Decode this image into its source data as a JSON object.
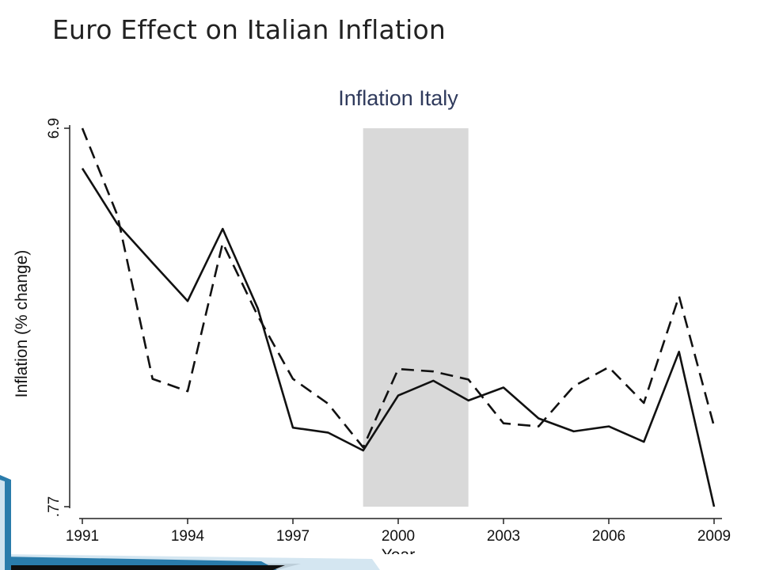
{
  "slide": {
    "title": "Euro Effect on Italian Inflation"
  },
  "colors": {
    "shade": "#d9d9d9",
    "line": "#111111",
    "chart_title": "#2f3a5c",
    "footer_dark": "#0f0f0f",
    "footer_blue": "#2a7cab",
    "footer_light": "#cfe3ef"
  },
  "chart_data": {
    "type": "line",
    "title": "Inflation Italy",
    "ylabel": "Inflation (% change)",
    "xlabel": "Year",
    "x": [
      1991,
      1992,
      1993,
      1994,
      1995,
      1996,
      1997,
      1998,
      1999,
      2000,
      2001,
      2002,
      2003,
      2004,
      2005,
      2006,
      2007,
      2008,
      2009
    ],
    "xlim": [
      1991,
      2009
    ],
    "ylim": [
      0.77,
      6.9
    ],
    "x_ticks": [
      "1991",
      "1994",
      "1997",
      "2000",
      "2003",
      "2006",
      "2009"
    ],
    "y_ticks": [
      "6.9",
      ".77"
    ],
    "shaded_region": {
      "x_start": 1999,
      "x_end": 2002
    },
    "series": [
      {
        "style": "solid",
        "values": [
          6.25,
          5.35,
          4.72,
          4.1,
          5.27,
          3.98,
          2.05,
          1.97,
          1.68,
          2.57,
          2.81,
          2.49,
          2.7,
          2.2,
          1.99,
          2.07,
          1.82,
          3.28,
          0.77
        ]
      },
      {
        "style": "dashed",
        "values": [
          6.9,
          5.49,
          2.84,
          2.64,
          5.04,
          3.86,
          2.84,
          2.44,
          1.73,
          3.0,
          2.96,
          2.83,
          2.12,
          2.07,
          2.72,
          3.03,
          2.45,
          4.18,
          2.07
        ]
      }
    ]
  }
}
